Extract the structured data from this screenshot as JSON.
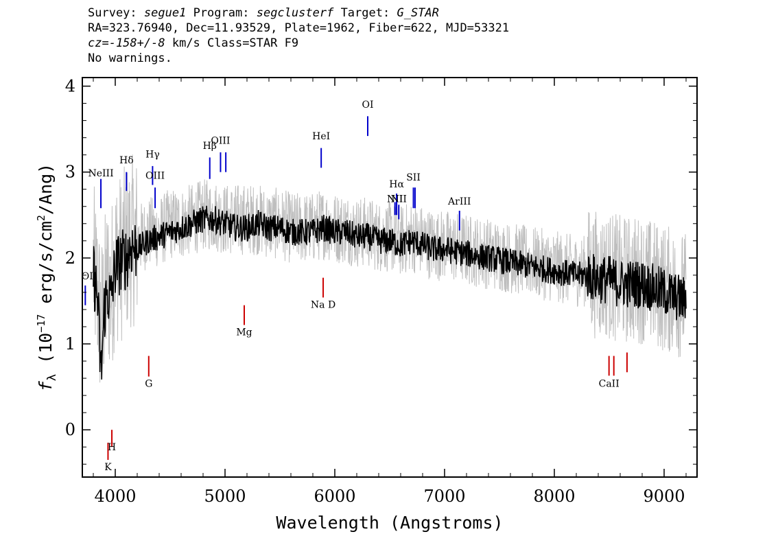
{
  "header": {
    "survey_label": "Survey:",
    "survey_value": "segue1",
    "program_label": "Program:",
    "program_value": "segclusterf",
    "target_label": "Target:",
    "target_value": "G_STAR",
    "line2": "RA=323.76940, Dec=11.93529, Plate=1962, Fiber=622, MJD=53321",
    "cz_value": "cz=-158+/-8",
    "cz_rest": "km/s Class=STAR F9",
    "warnings": "No warnings."
  },
  "chart_data": {
    "type": "line",
    "title": "",
    "xlabel": "Wavelength (Angstroms)",
    "ylabel_prefix": "f",
    "ylabel_sub": "λ",
    "ylabel_open": " (10",
    "ylabel_exp": "−17",
    "ylabel_mid": " erg/s/cm",
    "ylabel_exp2": "2",
    "ylabel_close": "/Ang)",
    "xlim": [
      3700,
      9300
    ],
    "ylim": [
      -0.55,
      4.1
    ],
    "xticks": [
      4000,
      5000,
      6000,
      7000,
      8000,
      9000
    ],
    "xtick_labels": [
      "4000",
      "5000",
      "6000",
      "7000",
      "8000",
      "9000"
    ],
    "yticks": [
      0,
      1,
      2,
      3,
      4
    ],
    "ytick_labels": [
      "0",
      "1",
      "2",
      "3",
      "4"
    ],
    "series": [
      {
        "role": "flux",
        "color": "#bebebe",
        "x": [
          3800,
          3840,
          3870,
          3900,
          3930,
          3960,
          4000,
          4050,
          4100,
          4150,
          4200,
          4300,
          4400,
          4500,
          4600,
          4700,
          4800,
          4900,
          5000,
          5100,
          5200,
          5300,
          5400,
          5500,
          5600,
          5700,
          5800,
          5900,
          6000,
          6100,
          6200,
          6300,
          6400,
          6500,
          6600,
          6700,
          6800,
          6900,
          7000,
          7200,
          7400,
          7600,
          7800,
          8000,
          8200,
          8300,
          8400,
          8500,
          8600,
          8700,
          8800,
          8900,
          9000,
          9100,
          9200
        ],
        "y": [
          1.9,
          1.6,
          1.2,
          1.5,
          1.7,
          1.6,
          2.0,
          2.0,
          2.1,
          2.2,
          2.2,
          2.3,
          2.3,
          2.4,
          2.4,
          2.45,
          2.5,
          2.5,
          2.45,
          2.45,
          2.45,
          2.45,
          2.4,
          2.4,
          2.35,
          2.35,
          2.35,
          2.4,
          2.35,
          2.35,
          2.3,
          2.3,
          2.25,
          2.25,
          2.2,
          2.25,
          2.2,
          2.15,
          2.15,
          2.1,
          2.05,
          2.0,
          1.95,
          1.9,
          1.85,
          1.85,
          1.8,
          1.8,
          1.75,
          1.75,
          1.75,
          1.7,
          1.65,
          1.6,
          1.55
        ]
      },
      {
        "role": "model",
        "color": "#000000",
        "x": [
          3800,
          3840,
          3870,
          3900,
          3930,
          3960,
          4000,
          4050,
          4100,
          4150,
          4200,
          4300,
          4400,
          4500,
          4600,
          4700,
          4800,
          4900,
          5000,
          5100,
          5200,
          5300,
          5400,
          5500,
          5600,
          5700,
          5800,
          5900,
          6000,
          6100,
          6200,
          6300,
          6400,
          6500,
          6600,
          6700,
          6800,
          6900,
          7000,
          7200,
          7400,
          7600,
          7800,
          8000,
          8200,
          8300,
          8400,
          8500,
          8600,
          8700,
          8800,
          8900,
          9000,
          9100,
          9200
        ],
        "y": [
          1.85,
          1.5,
          0.6,
          1.4,
          1.6,
          1.5,
          1.9,
          1.95,
          2.0,
          2.15,
          2.1,
          2.2,
          2.25,
          2.3,
          2.35,
          2.4,
          2.45,
          2.45,
          2.4,
          2.35,
          2.35,
          2.4,
          2.35,
          2.35,
          2.3,
          2.3,
          2.3,
          2.35,
          2.3,
          2.3,
          2.25,
          2.25,
          2.2,
          2.2,
          2.15,
          2.2,
          2.15,
          2.1,
          2.1,
          2.05,
          2.0,
          1.95,
          1.9,
          1.85,
          1.8,
          1.8,
          1.75,
          1.75,
          1.7,
          1.7,
          1.7,
          1.65,
          1.6,
          1.55,
          1.5
        ]
      }
    ],
    "emission_lines": [
      {
        "label": "NeIII",
        "x": 3869,
        "y_top": 2.92,
        "y_bottom": 2.58,
        "label_y": 2.95
      },
      {
        "label": "Hδ",
        "x": 4102,
        "y_top": 3.0,
        "y_bottom": 2.78,
        "label_y": 3.1
      },
      {
        "label": "Hγ",
        "x": 4340,
        "y_top": 3.07,
        "y_bottom": 2.85,
        "label_y": 3.17
      },
      {
        "label": "OIII",
        "x": 4363,
        "y_top": 2.82,
        "y_bottom": 2.58,
        "label_y": 2.92
      },
      {
        "label": "Hβ",
        "x": 4861,
        "y_top": 3.17,
        "y_bottom": 2.92,
        "label_y": 3.27
      },
      {
        "label": "OIII",
        "x": 4959,
        "y_top": 3.23,
        "y_bottom": 3.0,
        "label_y": 3.33
      },
      {
        "label": "",
        "x": 5007,
        "y_top": 3.23,
        "y_bottom": 3.0,
        "label_y": 3.33
      },
      {
        "label": "HeI",
        "x": 5876,
        "y_top": 3.28,
        "y_bottom": 3.05,
        "label_y": 3.38
      },
      {
        "label": "OI",
        "x": 6300,
        "y_top": 3.65,
        "y_bottom": 3.42,
        "label_y": 3.75
      },
      {
        "label": "NII",
        "x": 6548,
        "y_top": 2.65,
        "y_bottom": 2.5,
        "label_y": 2.65
      },
      {
        "label": "Hα",
        "x": 6563,
        "y_top": 2.75,
        "y_bottom": 2.5,
        "label_y": 2.82
      },
      {
        "label": "NII",
        "x": 6583,
        "y_top": 2.62,
        "y_bottom": 2.45,
        "label_y": 2.65
      },
      {
        "label": "SII",
        "x": 6716,
        "y_top": 2.82,
        "y_bottom": 2.58,
        "label_y": 2.9
      },
      {
        "label": "",
        "x": 6731,
        "y_top": 2.82,
        "y_bottom": 2.58,
        "label_y": 2.9
      },
      {
        "label": "ArIII",
        "x": 7136,
        "y_top": 2.55,
        "y_bottom": 2.32,
        "label_y": 2.62
      },
      {
        "label": "OII",
        "x": 3727,
        "y_top": 1.68,
        "y_bottom": 1.45,
        "label_y": 1.75
      }
    ],
    "absorption_lines": [
      {
        "label": "K",
        "x": 3934,
        "y_top": -0.15,
        "y_bottom": -0.35,
        "label_y": -0.47
      },
      {
        "label": "H",
        "x": 3969,
        "y_top": -0.0,
        "y_bottom": -0.2,
        "label_y": -0.24
      },
      {
        "label": "G",
        "x": 4305,
        "y_top": 0.86,
        "y_bottom": 0.62,
        "label_y": 0.5
      },
      {
        "label": "Mg",
        "x": 5175,
        "y_top": 1.45,
        "y_bottom": 1.22,
        "label_y": 1.1
      },
      {
        "label": "Na D",
        "x": 5894,
        "y_top": 1.77,
        "y_bottom": 1.54,
        "label_y": 1.42
      },
      {
        "label": "CaII",
        "x": 8498,
        "y_top": 0.86,
        "y_bottom": 0.63,
        "label_y": 0.5
      },
      {
        "label": "",
        "x": 8542,
        "y_top": 0.86,
        "y_bottom": 0.63,
        "label_y": 0.5
      },
      {
        "label": "",
        "x": 8662,
        "y_top": 0.9,
        "y_bottom": 0.67,
        "label_y": 0.5
      }
    ],
    "emission_color": "#0000cc",
    "absorption_color": "#cc0000"
  }
}
